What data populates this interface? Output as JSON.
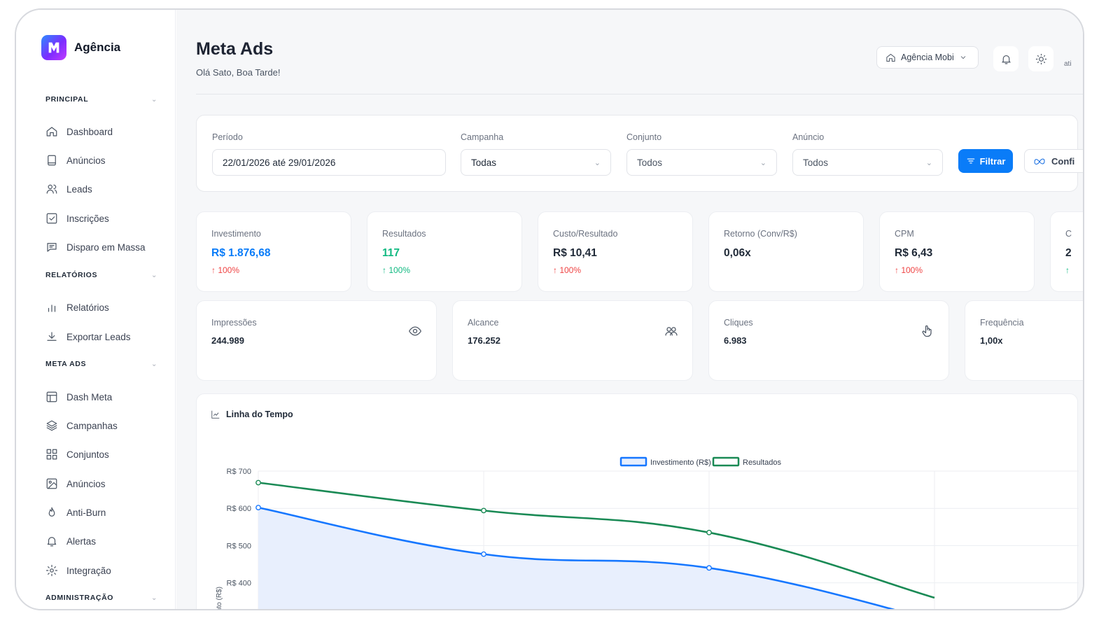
{
  "brand": {
    "name": "Agência"
  },
  "sidebar": {
    "sections": [
      {
        "title": "PRINCIPAL",
        "items": [
          "Dashboard",
          "Anúncios",
          "Leads",
          "Inscrições",
          "Disparo em Massa"
        ]
      },
      {
        "title": "RELATÓRIOS",
        "items": [
          "Relatórios",
          "Exportar Leads"
        ]
      },
      {
        "title": "META ADS",
        "items": [
          "Dash Meta",
          "Campanhas",
          "Conjuntos",
          "Anúncios",
          "Anti-Burn",
          "Alertas",
          "Integração"
        ]
      },
      {
        "title": "ADMINISTRAÇÃO",
        "items": []
      }
    ]
  },
  "header": {
    "title": "Meta Ads",
    "subtitle": "Olá Sato, Boa Tarde!",
    "agency_select": "Agência Mobi",
    "user_truncated": "ati"
  },
  "filters": {
    "periodo": {
      "label": "Período",
      "value": "22/01/2026 até 29/01/2026"
    },
    "campanha": {
      "label": "Campanha",
      "value": "Todas"
    },
    "conjunto": {
      "label": "Conjunto",
      "value": "Todos"
    },
    "anuncio": {
      "label": "Anúncio",
      "value": "Todos"
    },
    "filtrar_label": "Filtrar",
    "config_label": "Confi"
  },
  "kpis": [
    {
      "label": "Investimento",
      "value": "R$ 1.876,68",
      "change": "↑ 100%",
      "value_color": "#0a7cf8",
      "change_color": "#ef4444"
    },
    {
      "label": "Resultados",
      "value": "117",
      "change": "↑ 100%",
      "value_color": "#10b981",
      "change_color": "#10b981"
    },
    {
      "label": "Custo/Resultado",
      "value": "R$ 10,41",
      "change": "↑ 100%",
      "value_color": "#1f2937",
      "change_color": "#ef4444"
    },
    {
      "label": "Retorno (Conv/R$)",
      "value": "0,06x",
      "change": "",
      "value_color": "#1f2937",
      "change_color": "#ef4444"
    },
    {
      "label": "CPM",
      "value": "R$ 6,43",
      "change": "↑ 100%",
      "value_color": "#1f2937",
      "change_color": "#ef4444"
    },
    {
      "label": "C",
      "value": "2",
      "change": "↑",
      "value_color": "#1f2937",
      "change_color": "#10b981"
    }
  ],
  "metrics": [
    {
      "label": "Impressões",
      "value": "244.989",
      "icon": "eye-icon"
    },
    {
      "label": "Alcance",
      "value": "176.252",
      "icon": "users-icon"
    },
    {
      "label": "Cliques",
      "value": "6.983",
      "icon": "pointer-hand-icon"
    },
    {
      "label": "Frequência",
      "value": "1,00x",
      "icon": ""
    }
  ],
  "chart_title": "Linha do Tempo",
  "chart_data": {
    "type": "line",
    "title": "",
    "xlabel": "",
    "ylabel": "stimento (R$)",
    "y_tick_labels": [
      "R$ 700",
      "R$ 600",
      "R$ 500",
      "R$ 400"
    ],
    "y_ticks": [
      700,
      600,
      500,
      400
    ],
    "x_points": [
      0,
      1,
      2,
      3
    ],
    "series": [
      {
        "name": "Investimento (R$)",
        "color": "#1677ff",
        "fill": "#e8effd",
        "values": [
          602,
          477,
          440,
          300
        ]
      },
      {
        "name": "Resultados",
        "color": "#1a8a55",
        "values": [
          669,
          594,
          535,
          360
        ]
      }
    ],
    "legend": "top-center",
    "grid": true
  }
}
